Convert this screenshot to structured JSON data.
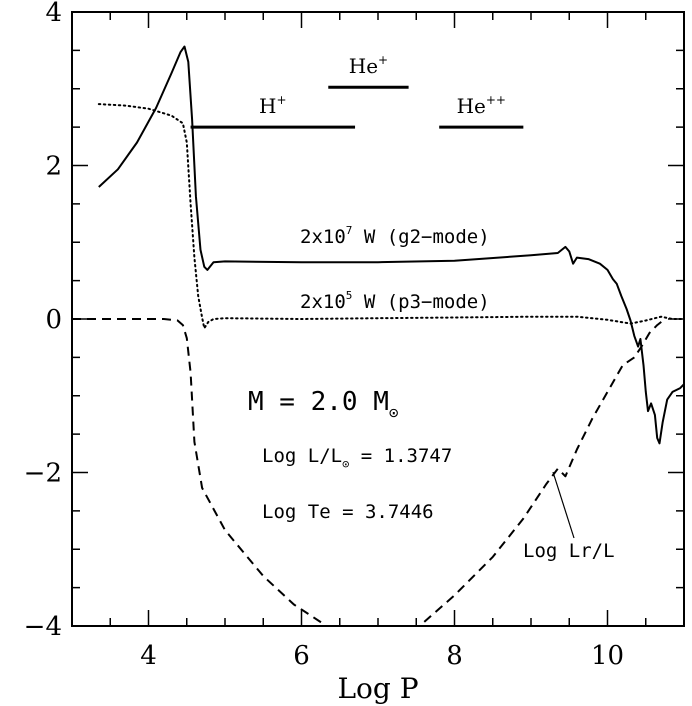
{
  "chart_data": {
    "type": "line",
    "xlabel": "Log P",
    "ylabel": "",
    "xlim": [
      3.0,
      11.0
    ],
    "ylim": [
      -4,
      4
    ],
    "x_ticks": [
      4,
      6,
      8,
      10
    ],
    "x_tick_labels": [
      "4",
      "6",
      "8",
      "10"
    ],
    "y_ticks": [
      -4,
      -2,
      0,
      2,
      4
    ],
    "y_tick_labels": [
      "−4",
      "−2",
      "0",
      "2",
      "4"
    ],
    "grid": false,
    "series": [
      {
        "name": "2x10^7 W (g2−mode)",
        "style": "solid",
        "points": [
          [
            3.35,
            1.72
          ],
          [
            3.6,
            1.95
          ],
          [
            3.85,
            2.3
          ],
          [
            4.1,
            2.75
          ],
          [
            4.3,
            3.2
          ],
          [
            4.42,
            3.48
          ],
          [
            4.47,
            3.55
          ],
          [
            4.52,
            3.35
          ],
          [
            4.57,
            2.6
          ],
          [
            4.62,
            1.6
          ],
          [
            4.68,
            0.9
          ],
          [
            4.73,
            0.68
          ],
          [
            4.77,
            0.64
          ],
          [
            4.85,
            0.74
          ],
          [
            5.0,
            0.75
          ],
          [
            6.0,
            0.74
          ],
          [
            7.0,
            0.74
          ],
          [
            8.0,
            0.76
          ],
          [
            9.0,
            0.83
          ],
          [
            9.35,
            0.86
          ],
          [
            9.45,
            0.94
          ],
          [
            9.5,
            0.88
          ],
          [
            9.55,
            0.72
          ],
          [
            9.6,
            0.8
          ],
          [
            9.75,
            0.78
          ],
          [
            9.9,
            0.72
          ],
          [
            10.0,
            0.64
          ],
          [
            10.07,
            0.52
          ],
          [
            10.12,
            0.46
          ],
          [
            10.18,
            0.3
          ],
          [
            10.25,
            0.13
          ],
          [
            10.3,
            -0.02
          ],
          [
            10.35,
            -0.22
          ],
          [
            10.4,
            -0.36
          ],
          [
            10.43,
            -0.26
          ],
          [
            10.47,
            -0.6
          ],
          [
            10.5,
            -0.95
          ],
          [
            10.53,
            -1.2
          ],
          [
            10.57,
            -1.1
          ],
          [
            10.62,
            -1.25
          ],
          [
            10.65,
            -1.55
          ],
          [
            10.68,
            -1.62
          ],
          [
            10.72,
            -1.35
          ],
          [
            10.78,
            -1.05
          ],
          [
            10.85,
            -0.95
          ],
          [
            10.95,
            -0.9
          ],
          [
            11.0,
            -0.85
          ]
        ]
      },
      {
        "name": "2x10^5 W (p3−mode)",
        "style": "dotted",
        "points": [
          [
            3.35,
            2.8
          ],
          [
            3.7,
            2.78
          ],
          [
            4.0,
            2.74
          ],
          [
            4.3,
            2.65
          ],
          [
            4.45,
            2.55
          ],
          [
            4.5,
            2.3
          ],
          [
            4.55,
            1.5
          ],
          [
            4.6,
            0.8
          ],
          [
            4.65,
            0.3
          ],
          [
            4.7,
            0.02
          ],
          [
            4.73,
            -0.12
          ],
          [
            4.78,
            -0.04
          ],
          [
            4.85,
            0.0
          ],
          [
            5.0,
            0.01
          ],
          [
            6.0,
            0.0
          ],
          [
            7.0,
            0.01
          ],
          [
            8.0,
            0.02
          ],
          [
            9.0,
            0.03
          ],
          [
            9.6,
            0.03
          ],
          [
            10.0,
            -0.01
          ],
          [
            10.3,
            -0.06
          ],
          [
            10.5,
            -0.02
          ],
          [
            10.7,
            0.03
          ],
          [
            10.85,
            0.0
          ],
          [
            11.0,
            0.0
          ]
        ]
      },
      {
        "name": "Log Lr/L",
        "style": "dashed",
        "points": [
          [
            3.0,
            0.0
          ],
          [
            4.2,
            0.0
          ],
          [
            4.38,
            -0.02
          ],
          [
            4.45,
            -0.08
          ],
          [
            4.5,
            -0.25
          ],
          [
            4.55,
            -0.7
          ],
          [
            4.6,
            -1.6
          ],
          [
            4.7,
            -2.2
          ],
          [
            5.0,
            -2.75
          ],
          [
            5.5,
            -3.35
          ],
          [
            5.9,
            -3.72
          ],
          [
            6.3,
            -3.98
          ],
          [
            6.8,
            -4.35
          ],
          [
            7.3,
            -4.3
          ],
          [
            7.6,
            -3.95
          ],
          [
            8.0,
            -3.6
          ],
          [
            8.5,
            -3.1
          ],
          [
            8.9,
            -2.6
          ],
          [
            9.2,
            -2.15
          ],
          [
            9.35,
            -1.95
          ],
          [
            9.45,
            -2.05
          ],
          [
            9.6,
            -1.7
          ],
          [
            9.8,
            -1.3
          ],
          [
            10.0,
            -0.95
          ],
          [
            10.2,
            -0.6
          ],
          [
            10.35,
            -0.5
          ],
          [
            10.45,
            -0.35
          ],
          [
            10.55,
            -0.18
          ],
          [
            10.65,
            -0.08
          ],
          [
            10.75,
            0.0
          ]
        ]
      }
    ],
    "ionization_zones": [
      {
        "label": "H",
        "charge": "+",
        "x_start": 4.55,
        "x_end": 6.7,
        "y": 2.5
      },
      {
        "label": "He",
        "charge": "+",
        "x_start": 6.35,
        "x_end": 7.4,
        "y": 3.02
      },
      {
        "label": "He",
        "charge": "++",
        "x_start": 7.8,
        "x_end": 8.9,
        "y": 2.5
      }
    ],
    "annotations": {
      "g2_label": {
        "main": "2x10",
        "exp": "7",
        "rest": " W (g2−mode)"
      },
      "p3_label": {
        "main": "2x10",
        "exp": "5",
        "rest": " W (p3−mode)"
      },
      "mass_label": {
        "main": "M = 2.0 M",
        "sub": "⊙"
      },
      "lum_label": {
        "main": "Log L/L",
        "sub": "⊙",
        "rest": " = 1.3747"
      },
      "te_label": "Log Te = 3.7446",
      "lr_label": "Log Lr/L"
    }
  }
}
